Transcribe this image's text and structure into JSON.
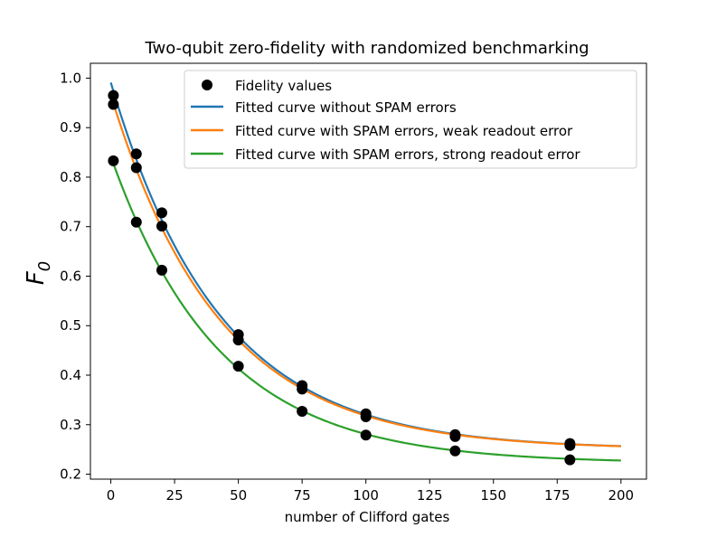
{
  "chart_data": {
    "type": "scatter",
    "title": "Two-qubit zero-fidelity with randomized benchmarking",
    "xlabel": "number of Clifford gates",
    "ylabel": "F",
    "ylabel_subscript": "0",
    "xlim": [
      -8,
      210
    ],
    "ylim": [
      0.19,
      1.03
    ],
    "xticks": [
      0,
      25,
      50,
      75,
      100,
      125,
      150,
      175,
      200
    ],
    "yticks": [
      0.2,
      0.3,
      0.4,
      0.5,
      0.6,
      0.7,
      0.8,
      0.9,
      1.0
    ],
    "ytick_labels": [
      "0.2",
      "0.3",
      "0.4",
      "0.5",
      "0.6",
      "0.7",
      "0.8",
      "0.9",
      "1.0"
    ],
    "legend_position": "top-right",
    "points": {
      "name": "Fidelity values",
      "color": "#000000",
      "x": [
        1,
        1,
        1,
        10,
        10,
        10,
        20,
        20,
        20,
        50,
        50,
        50,
        75,
        75,
        75,
        100,
        100,
        100,
        135,
        135,
        135,
        180,
        180,
        180
      ],
      "y": [
        0.965,
        0.947,
        0.833,
        0.847,
        0.819,
        0.709,
        0.728,
        0.701,
        0.612,
        0.482,
        0.471,
        0.418,
        0.379,
        0.372,
        0.327,
        0.322,
        0.316,
        0.279,
        0.28,
        0.276,
        0.247,
        0.262,
        0.258,
        0.229
      ]
    },
    "series": [
      {
        "name": "Fitted curve without SPAM errors",
        "color": "#1f77b4",
        "model": "a*exp(-x/tau)+c",
        "a": 0.741,
        "tau": 42.5,
        "c": 0.25
      },
      {
        "name": "Fitted curve with SPAM errors, weak readout error",
        "color": "#ff7f0e",
        "model": "a*exp(-x/tau)+c",
        "a": 0.716,
        "tau": 42.5,
        "c": 0.25
      },
      {
        "name": "Fitted curve with SPAM errors, strong readout error",
        "color": "#2ca02c",
        "model": "a*exp(-x/tau)+c",
        "a": 0.62,
        "tau": 42.5,
        "c": 0.222
      }
    ],
    "x_range_fit": [
      0,
      200
    ]
  }
}
